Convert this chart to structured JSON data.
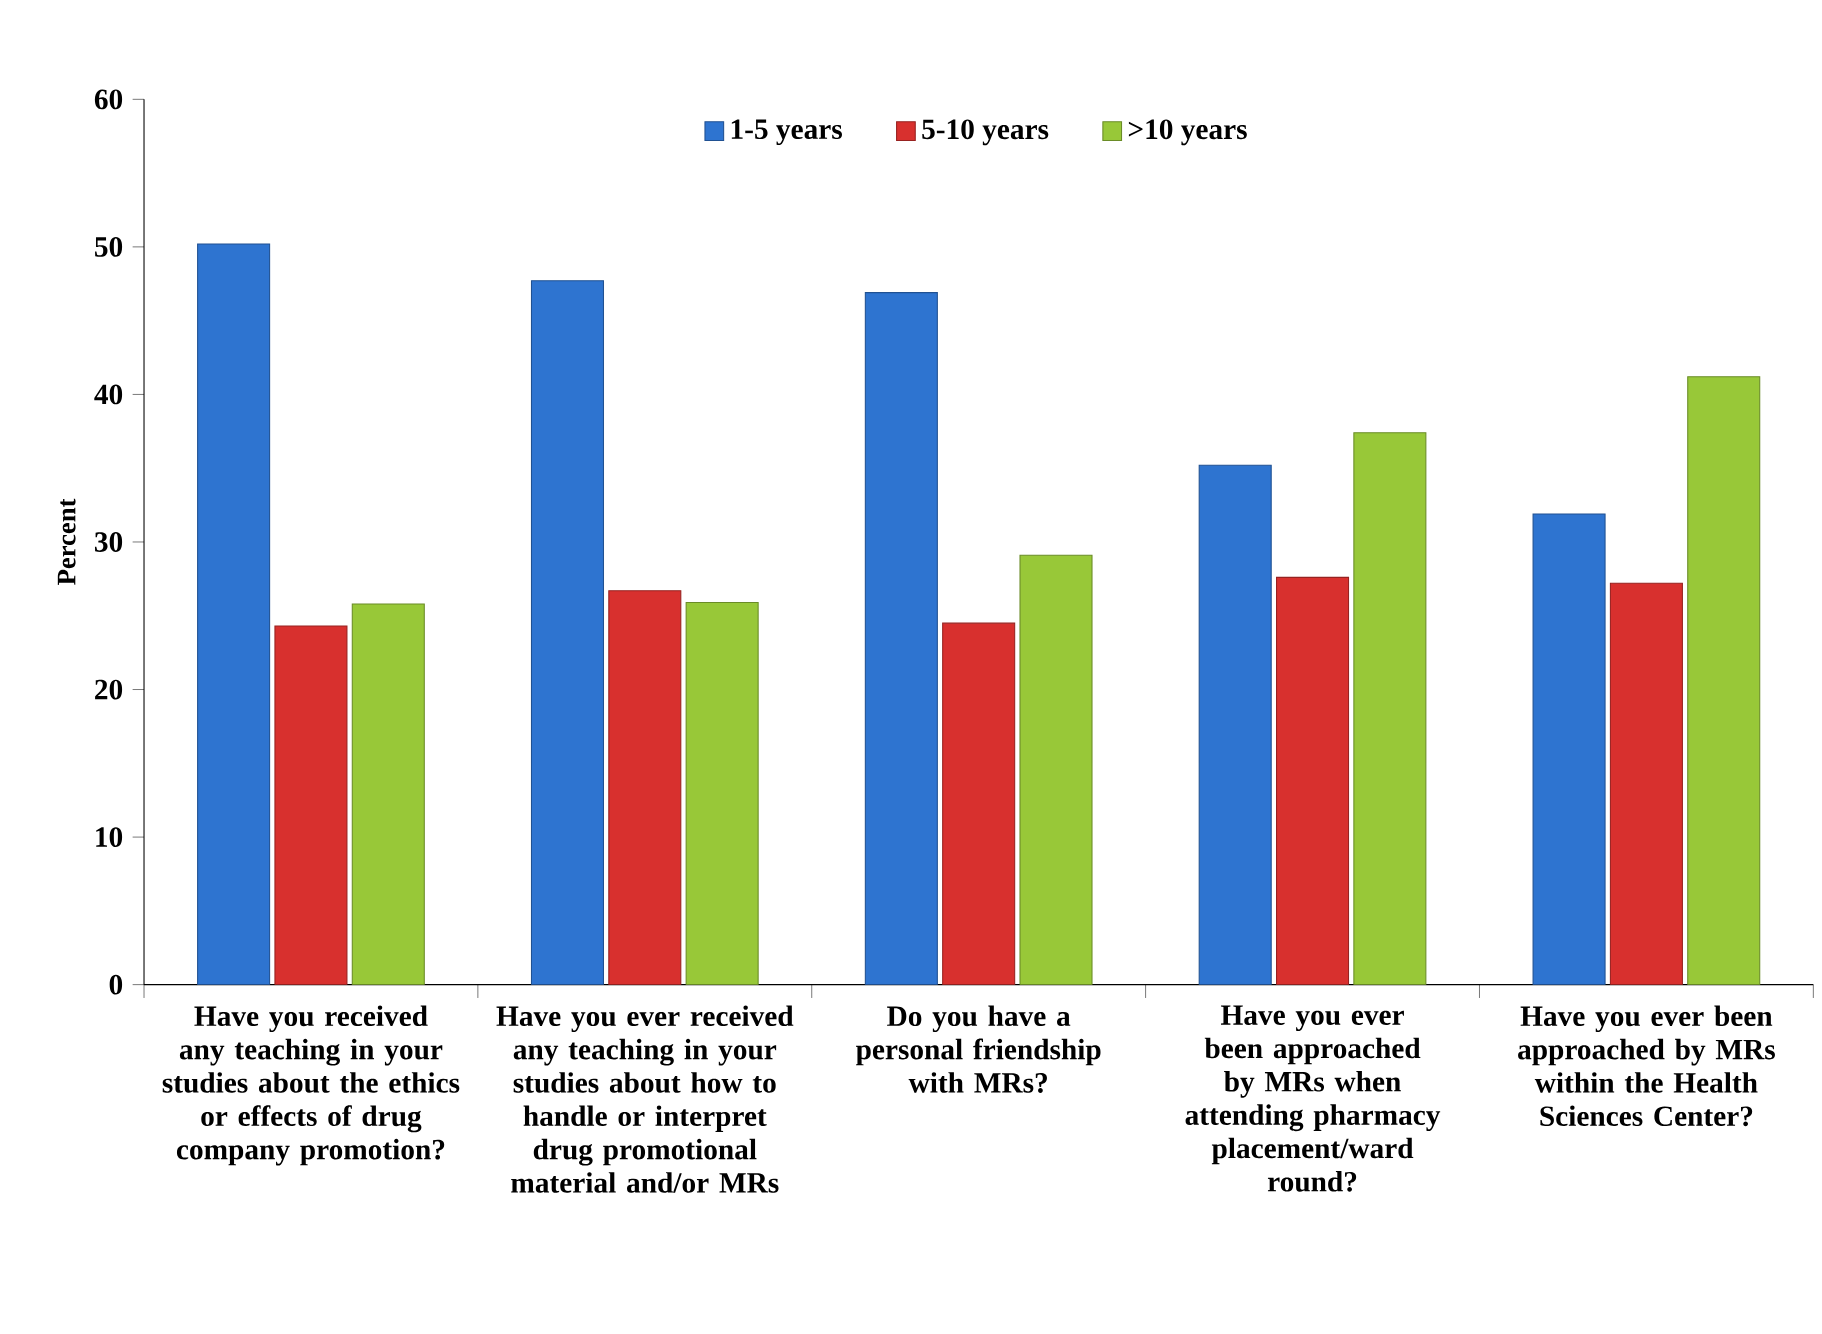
{
  "chart_data": {
    "type": "bar",
    "ylabel": "Percent",
    "categories": [
      "Have you received any teaching in your studies about the ethics or effects of drug company promotion?",
      "Have you ever received any teaching in your studies about how to handle or interpret drug promotional material and/or MRs",
      "Do you have a personal friendship with MRs?",
      "Have you ever been approached by MRs when attending pharmacy placement/ward round?",
      "Have you ever been approached by MRs within the Health Sciences Center?"
    ],
    "series": [
      {
        "name": "1-5 years",
        "color": "#2e74d0",
        "values": [
          50.2,
          47.7,
          46.9,
          35.2,
          31.9
        ]
      },
      {
        "name": "5-10 years",
        "color": "#d8302e",
        "values": [
          24.3,
          26.7,
          24.5,
          27.6,
          27.2
        ]
      },
      {
        "name": ">10 years",
        "color": "#98c838",
        "values": [
          25.8,
          25.9,
          29.1,
          37.4,
          41.2
        ]
      }
    ],
    "ylim": [
      0,
      60
    ],
    "yticks": [
      0,
      10,
      20,
      30,
      40,
      50,
      60
    ],
    "grid": false,
    "legend": "top"
  }
}
